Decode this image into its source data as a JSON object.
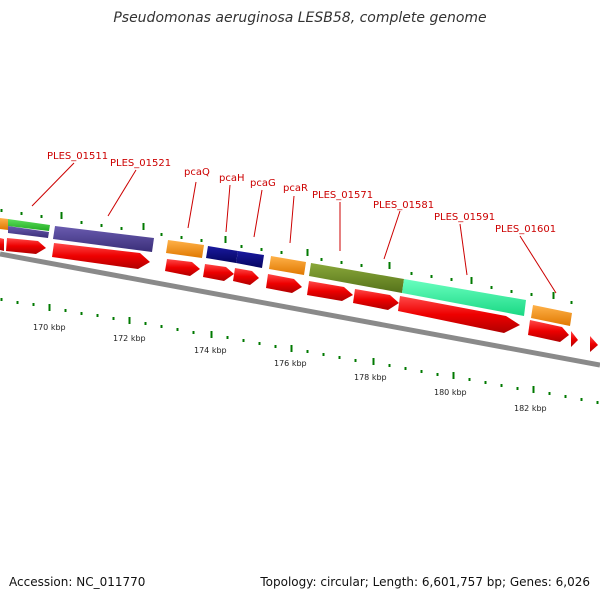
{
  "title": "Pseudomonas aeruginosa LESB58, complete genome",
  "footer": {
    "accession": "Accession: NC_011770",
    "stats": "Topology: circular; Length: 6,601,757 bp; Genes: 6,026"
  },
  "colors": {
    "backbone": "#8a8a8a",
    "cds": "#ee0000",
    "label": "#cc0000",
    "tick": "#007a00",
    "orange": "#ff8c00",
    "purple": "#4b3d8f",
    "navy": "#0a0a80",
    "olive": "#6b8e23",
    "mint": "#2af59a",
    "green": "#33cc33"
  },
  "gene_labels": [
    "PLES_01511",
    "PLES_01521",
    "pcaQ",
    "pcaH",
    "pcaG",
    "pcaR",
    "PLES_01571",
    "PLES_01581",
    "PLES_01591",
    "PLES_01601"
  ],
  "kbp_labels": [
    "170 kbp",
    "172 kbp",
    "174 kbp",
    "176 kbp",
    "178 kbp",
    "180 kbp",
    "182 kbp"
  ]
}
